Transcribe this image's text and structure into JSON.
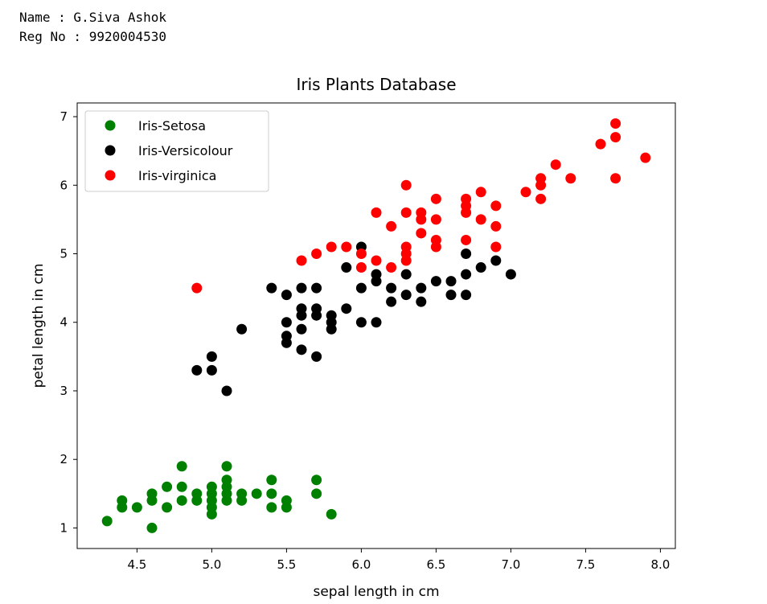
{
  "header": {
    "name_line": "Name : G.Siva Ashok",
    "reg_line": "Reg No : 9920004530"
  },
  "chart_data": {
    "type": "scatter",
    "title": "Iris Plants Database",
    "xlabel": "sepal length in cm",
    "ylabel": "petal length in cm",
    "xlim": [
      4.1,
      8.1
    ],
    "ylim": [
      0.7,
      7.2
    ],
    "x_ticks": [
      4.5,
      5.0,
      5.5,
      6.0,
      6.5,
      7.0,
      7.5,
      8.0
    ],
    "x_tick_labels": [
      "4.5",
      "5.0",
      "5.5",
      "6.0",
      "6.5",
      "7.0",
      "7.5",
      "8.0"
    ],
    "y_ticks": [
      1,
      2,
      3,
      4,
      5,
      6,
      7
    ],
    "y_tick_labels": [
      "1",
      "2",
      "3",
      "4",
      "5",
      "6",
      "7"
    ],
    "grid": false,
    "legend_position": "top-left",
    "series": [
      {
        "name": "Iris-Setosa",
        "color": "#008000",
        "points": [
          [
            4.3,
            1.1
          ],
          [
            4.4,
            1.3
          ],
          [
            4.4,
            1.4
          ],
          [
            4.5,
            1.3
          ],
          [
            4.6,
            1.0
          ],
          [
            4.6,
            1.4
          ],
          [
            4.6,
            1.5
          ],
          [
            4.7,
            1.3
          ],
          [
            4.7,
            1.6
          ],
          [
            4.8,
            1.4
          ],
          [
            4.8,
            1.6
          ],
          [
            4.8,
            1.9
          ],
          [
            4.9,
            1.4
          ],
          [
            4.9,
            1.5
          ],
          [
            5.0,
            1.2
          ],
          [
            5.0,
            1.3
          ],
          [
            5.0,
            1.4
          ],
          [
            5.0,
            1.5
          ],
          [
            5.0,
            1.6
          ],
          [
            5.1,
            1.4
          ],
          [
            5.1,
            1.5
          ],
          [
            5.1,
            1.6
          ],
          [
            5.1,
            1.7
          ],
          [
            5.1,
            1.9
          ],
          [
            5.2,
            1.4
          ],
          [
            5.2,
            1.5
          ],
          [
            5.3,
            1.5
          ],
          [
            5.4,
            1.3
          ],
          [
            5.4,
            1.5
          ],
          [
            5.4,
            1.7
          ],
          [
            5.5,
            1.3
          ],
          [
            5.5,
            1.4
          ],
          [
            5.7,
            1.5
          ],
          [
            5.7,
            1.7
          ],
          [
            5.8,
            1.2
          ]
        ]
      },
      {
        "name": "Iris-Versicolour",
        "color": "#000000",
        "points": [
          [
            4.9,
            3.3
          ],
          [
            5.0,
            3.3
          ],
          [
            5.0,
            3.5
          ],
          [
            5.1,
            3.0
          ],
          [
            5.2,
            3.9
          ],
          [
            5.4,
            4.5
          ],
          [
            5.5,
            3.7
          ],
          [
            5.5,
            3.8
          ],
          [
            5.5,
            4.0
          ],
          [
            5.5,
            4.4
          ],
          [
            5.6,
            3.6
          ],
          [
            5.6,
            3.9
          ],
          [
            5.6,
            4.1
          ],
          [
            5.6,
            4.2
          ],
          [
            5.6,
            4.5
          ],
          [
            5.7,
            3.5
          ],
          [
            5.7,
            4.1
          ],
          [
            5.7,
            4.2
          ],
          [
            5.7,
            4.5
          ],
          [
            5.8,
            3.9
          ],
          [
            5.8,
            4.0
          ],
          [
            5.8,
            4.1
          ],
          [
            5.9,
            4.2
          ],
          [
            5.9,
            4.8
          ],
          [
            6.0,
            4.0
          ],
          [
            6.0,
            4.5
          ],
          [
            6.0,
            5.1
          ],
          [
            6.1,
            4.0
          ],
          [
            6.1,
            4.6
          ],
          [
            6.1,
            4.7
          ],
          [
            6.2,
            4.3
          ],
          [
            6.2,
            4.5
          ],
          [
            6.3,
            4.4
          ],
          [
            6.3,
            4.7
          ],
          [
            6.4,
            4.3
          ],
          [
            6.4,
            4.5
          ],
          [
            6.5,
            4.6
          ],
          [
            6.6,
            4.4
          ],
          [
            6.6,
            4.6
          ],
          [
            6.7,
            4.4
          ],
          [
            6.7,
            4.7
          ],
          [
            6.7,
            5.0
          ],
          [
            6.8,
            4.8
          ],
          [
            6.9,
            4.9
          ],
          [
            7.0,
            4.7
          ]
        ]
      },
      {
        "name": "Iris-virginica",
        "color": "#ff0000",
        "points": [
          [
            4.9,
            4.5
          ],
          [
            5.6,
            4.9
          ],
          [
            5.7,
            5.0
          ],
          [
            5.8,
            5.1
          ],
          [
            5.9,
            5.1
          ],
          [
            6.0,
            4.8
          ],
          [
            6.0,
            5.0
          ],
          [
            6.1,
            4.9
          ],
          [
            6.1,
            5.6
          ],
          [
            6.2,
            4.8
          ],
          [
            6.2,
            5.4
          ],
          [
            6.3,
            4.9
          ],
          [
            6.3,
            5.0
          ],
          [
            6.3,
            5.1
          ],
          [
            6.3,
            5.6
          ],
          [
            6.3,
            6.0
          ],
          [
            6.4,
            5.3
          ],
          [
            6.4,
            5.5
          ],
          [
            6.4,
            5.6
          ],
          [
            6.5,
            5.1
          ],
          [
            6.5,
            5.2
          ],
          [
            6.5,
            5.5
          ],
          [
            6.5,
            5.8
          ],
          [
            6.7,
            5.2
          ],
          [
            6.7,
            5.6
          ],
          [
            6.7,
            5.7
          ],
          [
            6.7,
            5.8
          ],
          [
            6.8,
            5.5
          ],
          [
            6.8,
            5.9
          ],
          [
            6.9,
            5.1
          ],
          [
            6.9,
            5.4
          ],
          [
            6.9,
            5.7
          ],
          [
            7.1,
            5.9
          ],
          [
            7.2,
            5.8
          ],
          [
            7.2,
            6.0
          ],
          [
            7.2,
            6.1
          ],
          [
            7.3,
            6.3
          ],
          [
            7.4,
            6.1
          ],
          [
            7.6,
            6.6
          ],
          [
            7.7,
            6.1
          ],
          [
            7.7,
            6.7
          ],
          [
            7.7,
            6.9
          ],
          [
            7.9,
            6.4
          ]
        ]
      }
    ]
  }
}
